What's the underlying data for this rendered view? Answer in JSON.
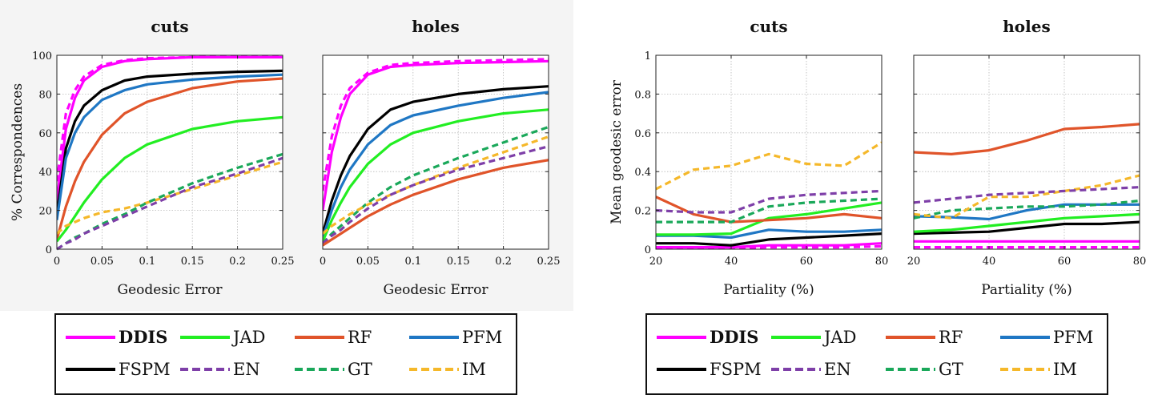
{
  "figures": {
    "cdf": {
      "xlabel": "Geodesic Error",
      "ylabel": "% Correspondences",
      "xticks": [
        "0",
        "0.05",
        "0.1",
        "0.15",
        "0.2",
        "0.25"
      ],
      "yticks": [
        "0",
        "20",
        "40",
        "60",
        "80",
        "100"
      ]
    },
    "partial": {
      "xlabel": "Partiality (%)",
      "ylabel": "Mean geodesic error",
      "xticks": [
        "20",
        "40",
        "60",
        "80"
      ],
      "yticks": [
        "0",
        "0.2",
        "0.4",
        "0.6",
        "0.8",
        "1"
      ]
    }
  },
  "legend": [
    {
      "name": "DDIS",
      "color": "#ff00ff",
      "dash": false,
      "bold": true
    },
    {
      "name": "JAD",
      "color": "#22ee22",
      "dash": false,
      "bold": false
    },
    {
      "name": "RF",
      "color": "#e0542a",
      "dash": false,
      "bold": false
    },
    {
      "name": "PFM",
      "color": "#1f77c4",
      "dash": false,
      "bold": false
    },
    {
      "name": "FSPM",
      "color": "#000000",
      "dash": false,
      "bold": false
    },
    {
      "name": "EN",
      "color": "#7e3fa8",
      "dash": true,
      "bold": false
    },
    {
      "name": "GT",
      "color": "#1aa85a",
      "dash": true,
      "bold": false
    },
    {
      "name": "IM",
      "color": "#f5b82a",
      "dash": true,
      "bold": false
    }
  ],
  "chart_data": [
    {
      "type": "line",
      "title": "cuts",
      "xlabel": "Geodesic Error",
      "ylabel": "% Correspondences",
      "xlim": [
        0,
        0.25
      ],
      "ylim": [
        0,
        100
      ],
      "grid": true,
      "x": [
        0,
        0.01,
        0.02,
        0.03,
        0.05,
        0.075,
        0.1,
        0.15,
        0.2,
        0.25
      ],
      "series": [
        {
          "name": "DDIS",
          "values": [
            25,
            62,
            78,
            87,
            94,
            97,
            98,
            99,
            99,
            99
          ]
        },
        {
          "name": "DDIS-dashed",
          "values": [
            35,
            70,
            82,
            89,
            95,
            97.5,
            98.5,
            99,
            99.5,
            99.5
          ]
        },
        {
          "name": "FSPM",
          "values": [
            18,
            52,
            66,
            74,
            82,
            87,
            89,
            90.5,
            91.5,
            92
          ]
        },
        {
          "name": "PFM",
          "values": [
            15,
            47,
            60,
            68,
            77,
            82,
            85,
            87.5,
            89,
            90
          ]
        },
        {
          "name": "RF",
          "values": [
            5,
            22,
            35,
            45,
            59,
            70,
            76,
            83,
            86.5,
            88
          ]
        },
        {
          "name": "JAD",
          "values": [
            4,
            10,
            17,
            24,
            36,
            47,
            54,
            62,
            66,
            68
          ]
        },
        {
          "name": "IM",
          "values": [
            8,
            12,
            14,
            16,
            19,
            21,
            24,
            31,
            38,
            45
          ]
        },
        {
          "name": "GT",
          "values": [
            0,
            3,
            6,
            8,
            13,
            18,
            24,
            34,
            42,
            49
          ]
        },
        {
          "name": "EN",
          "values": [
            0,
            3,
            5,
            8,
            12,
            17,
            22,
            32,
            39,
            47
          ]
        }
      ]
    },
    {
      "type": "line",
      "title": "holes",
      "xlabel": "Geodesic Error",
      "ylabel": "",
      "xlim": [
        0,
        0.25
      ],
      "ylim": [
        0,
        100
      ],
      "grid": true,
      "x": [
        0,
        0.01,
        0.02,
        0.03,
        0.05,
        0.075,
        0.1,
        0.15,
        0.2,
        0.25
      ],
      "series": [
        {
          "name": "DDIS",
          "values": [
            20,
            50,
            68,
            80,
            90,
            94,
            95,
            96,
            96.5,
            97
          ]
        },
        {
          "name": "DDIS-dashed",
          "values": [
            30,
            58,
            74,
            83,
            91,
            95,
            96,
            97,
            97.5,
            98
          ]
        },
        {
          "name": "FSPM",
          "values": [
            8,
            25,
            38,
            48,
            62,
            72,
            76,
            80,
            82.5,
            84
          ]
        },
        {
          "name": "PFM",
          "values": [
            6,
            20,
            32,
            41,
            54,
            64,
            69,
            74,
            78,
            81
          ]
        },
        {
          "name": "JAD",
          "values": [
            4,
            15,
            24,
            32,
            44,
            54,
            60,
            66,
            70,
            72
          ]
        },
        {
          "name": "GT",
          "values": [
            3,
            8,
            12,
            16,
            24,
            32,
            38,
            47,
            55,
            63
          ]
        },
        {
          "name": "IM",
          "values": [
            8,
            12,
            15,
            18,
            23,
            28,
            33,
            42,
            50,
            58
          ]
        },
        {
          "name": "EN",
          "values": [
            3,
            7,
            10,
            14,
            21,
            28,
            33,
            41,
            47,
            53
          ]
        },
        {
          "name": "RF",
          "values": [
            2,
            5,
            8,
            11,
            17,
            23,
            28,
            36,
            42,
            46
          ]
        }
      ]
    },
    {
      "type": "line",
      "title": "cuts",
      "xlabel": "Partiality (%)",
      "ylabel": "Mean geodesic error",
      "xlim": [
        20,
        80
      ],
      "ylim": [
        0,
        1
      ],
      "grid": true,
      "x": [
        20,
        30,
        40,
        50,
        60,
        70,
        80
      ],
      "series": [
        {
          "name": "DDIS",
          "values": [
            0.01,
            0.01,
            0.01,
            0.02,
            0.02,
            0.02,
            0.03
          ]
        },
        {
          "name": "DDIS-dashed",
          "values": [
            0.005,
            0.005,
            0.005,
            0.01,
            0.01,
            0.01,
            0.015
          ]
        },
        {
          "name": "FSPM",
          "values": [
            0.03,
            0.03,
            0.02,
            0.05,
            0.06,
            0.07,
            0.08
          ]
        },
        {
          "name": "PFM",
          "values": [
            0.07,
            0.07,
            0.06,
            0.1,
            0.09,
            0.09,
            0.1
          ]
        },
        {
          "name": "JAD",
          "values": [
            0.075,
            0.075,
            0.08,
            0.16,
            0.18,
            0.21,
            0.24
          ]
        },
        {
          "name": "RF",
          "values": [
            0.27,
            0.18,
            0.14,
            0.15,
            0.16,
            0.18,
            0.16
          ]
        },
        {
          "name": "GT",
          "values": [
            0.14,
            0.14,
            0.14,
            0.22,
            0.24,
            0.25,
            0.26
          ]
        },
        {
          "name": "EN",
          "values": [
            0.2,
            0.19,
            0.19,
            0.26,
            0.28,
            0.29,
            0.3
          ]
        },
        {
          "name": "IM",
          "values": [
            0.31,
            0.41,
            0.43,
            0.49,
            0.44,
            0.43,
            0.55
          ]
        }
      ]
    },
    {
      "type": "line",
      "title": "holes",
      "xlabel": "Partiality (%)",
      "ylabel": "",
      "xlim": [
        20,
        80
      ],
      "ylim": [
        0,
        1
      ],
      "grid": true,
      "x": [
        20,
        30,
        40,
        50,
        60,
        70,
        80
      ],
      "series": [
        {
          "name": "DDIS",
          "values": [
            0.04,
            0.04,
            0.04,
            0.04,
            0.04,
            0.04,
            0.04
          ]
        },
        {
          "name": "DDIS-dashed",
          "values": [
            0.01,
            0.01,
            0.01,
            0.01,
            0.01,
            0.01,
            0.01
          ]
        },
        {
          "name": "FSPM",
          "values": [
            0.08,
            0.085,
            0.09,
            0.11,
            0.13,
            0.13,
            0.14
          ]
        },
        {
          "name": "JAD",
          "values": [
            0.09,
            0.1,
            0.12,
            0.14,
            0.16,
            0.17,
            0.18
          ]
        },
        {
          "name": "PFM",
          "values": [
            0.17,
            0.165,
            0.155,
            0.2,
            0.23,
            0.23,
            0.23
          ]
        },
        {
          "name": "GT",
          "values": [
            0.16,
            0.2,
            0.21,
            0.22,
            0.22,
            0.23,
            0.25
          ]
        },
        {
          "name": "IM",
          "values": [
            0.18,
            0.16,
            0.27,
            0.27,
            0.3,
            0.33,
            0.38
          ]
        },
        {
          "name": "EN",
          "values": [
            0.24,
            0.26,
            0.28,
            0.29,
            0.3,
            0.31,
            0.32
          ]
        },
        {
          "name": "RF",
          "values": [
            0.5,
            0.49,
            0.51,
            0.56,
            0.62,
            0.63,
            0.645
          ]
        }
      ]
    }
  ]
}
